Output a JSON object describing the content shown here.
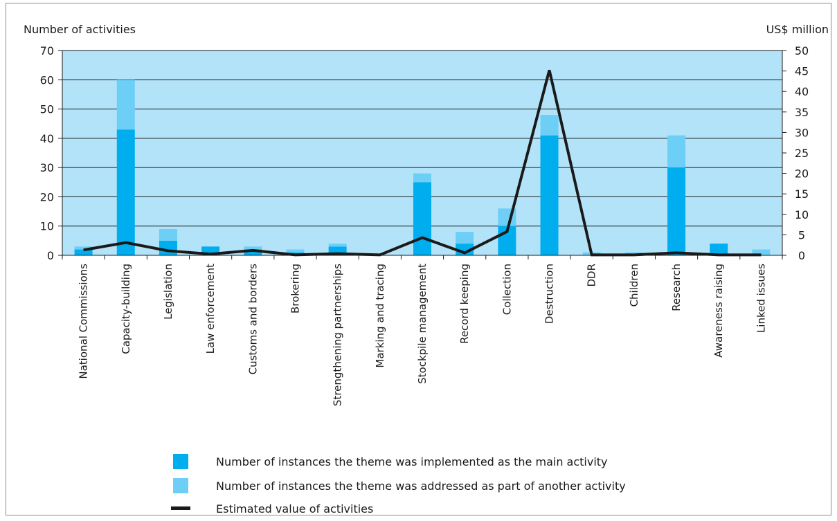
{
  "chart_data": {
    "type": "bar",
    "stacked": true,
    "categories": [
      "National Commissions",
      "Capacity-building",
      "Legislation",
      "Law enforcement",
      "Customs and borders",
      "Brokering",
      "Strengthening partnerships",
      "Marking and tracing",
      "Stockpile management",
      "Record keeping",
      "Collection",
      "Destruction",
      "DDR",
      "Children",
      "Research",
      "Awareness raising",
      "Linked issues"
    ],
    "series": [
      {
        "name": "Number of instances the theme was implemented as the main activity",
        "axis": "left",
        "kind": "bar",
        "color": "#00aeef",
        "values": [
          2,
          43,
          5,
          3,
          2,
          1,
          3,
          0,
          25,
          4,
          10,
          41,
          0,
          0,
          30,
          4,
          0
        ]
      },
      {
        "name": "Number of instances the theme was addressed as part of another activity",
        "axis": "left",
        "kind": "bar",
        "color": "#6dcff6",
        "values": [
          1,
          17,
          4,
          0,
          1,
          1,
          1,
          0,
          3,
          4,
          6,
          7,
          1,
          1,
          11,
          0,
          2
        ]
      },
      {
        "name": "Estimated value of activities",
        "axis": "right",
        "kind": "line",
        "color": "#1a1a1a",
        "values": [
          1.3,
          3.1,
          1.1,
          0.3,
          1.2,
          0.1,
          0.4,
          0.1,
          4.3,
          0.6,
          5.8,
          45.2,
          0.1,
          0.1,
          0.6,
          0.1,
          0.1
        ]
      }
    ],
    "ylabel_left": "Number of activities",
    "ylabel_right": "US$ million",
    "ylim_left": [
      0,
      70
    ],
    "ylim_right": [
      0,
      50
    ],
    "yticks_left": [
      0,
      10,
      20,
      30,
      40,
      50,
      60,
      70
    ],
    "yticks_right": [
      0,
      5,
      10,
      15,
      20,
      25,
      30,
      35,
      40,
      45,
      50
    ],
    "grid": true,
    "plot_background": "#b3e3f8",
    "legend_position": "bottom"
  }
}
